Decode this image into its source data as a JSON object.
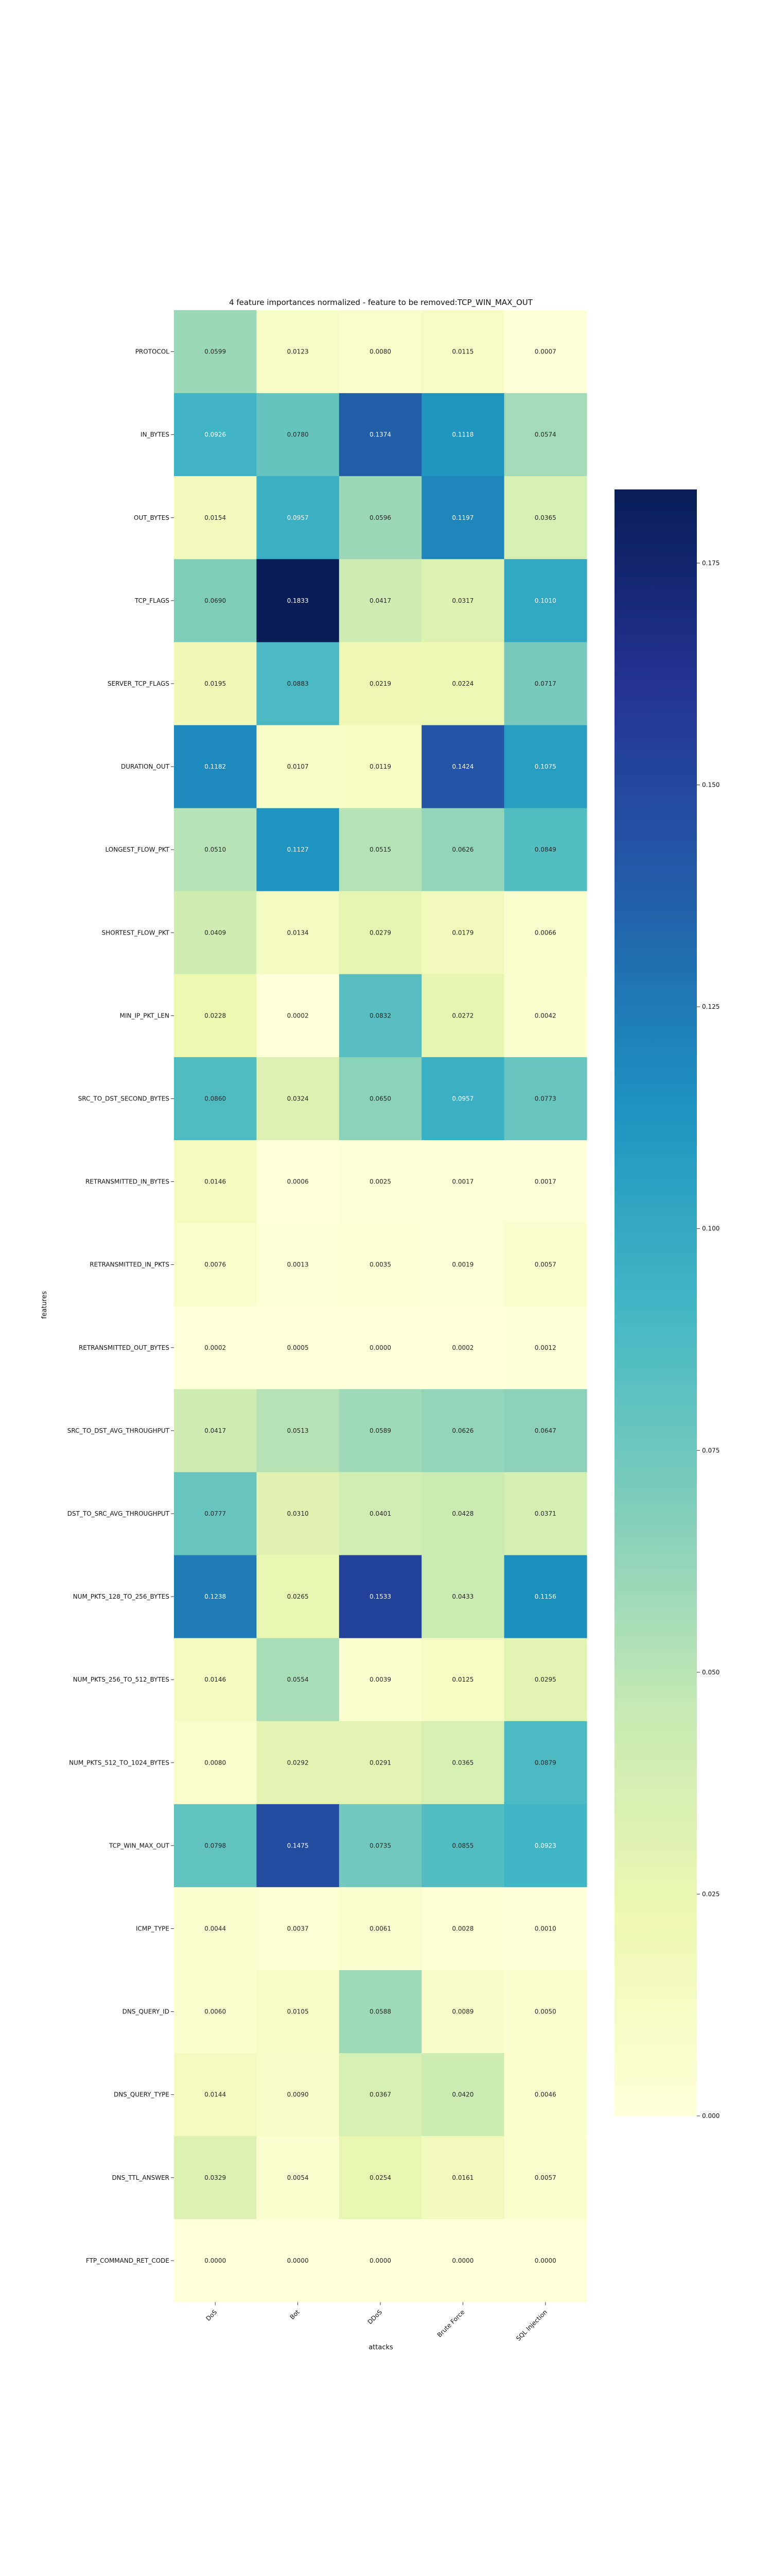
{
  "chart_data": {
    "type": "heatmap",
    "title": "4 feature importances normalized - feature to be removed:TCP_WIN_MAX_OUT",
    "xlabel": "attacks",
    "ylabel": "features",
    "columns": [
      "DoS",
      "Bot",
      "DDoS",
      "Brute Force",
      "SQL Injection"
    ],
    "rows": [
      "PROTOCOL",
      "IN_BYTES",
      "OUT_BYTES",
      "TCP_FLAGS",
      "SERVER_TCP_FLAGS",
      "DURATION_OUT",
      "LONGEST_FLOW_PKT",
      "SHORTEST_FLOW_PKT",
      "MIN_IP_PKT_LEN",
      "SRC_TO_DST_SECOND_BYTES",
      "RETRANSMITTED_IN_BYTES",
      "RETRANSMITTED_IN_PKTS",
      "RETRANSMITTED_OUT_BYTES",
      "SRC_TO_DST_AVG_THROUGHPUT",
      "DST_TO_SRC_AVG_THROUGHPUT",
      "NUM_PKTS_128_TO_256_BYTES",
      "NUM_PKTS_256_TO_512_BYTES",
      "NUM_PKTS_512_TO_1024_BYTES",
      "TCP_WIN_MAX_OUT",
      "ICMP_TYPE",
      "DNS_QUERY_ID",
      "DNS_QUERY_TYPE",
      "DNS_TTL_ANSWER",
      "FTP_COMMAND_RET_CODE"
    ],
    "values": [
      [
        0.0599,
        0.0123,
        0.008,
        0.0115,
        0.0007
      ],
      [
        0.0926,
        0.078,
        0.1374,
        0.1118,
        0.0574
      ],
      [
        0.0154,
        0.0957,
        0.0596,
        0.1197,
        0.0365
      ],
      [
        0.069,
        0.1833,
        0.0417,
        0.0317,
        0.101
      ],
      [
        0.0195,
        0.0883,
        0.0219,
        0.0224,
        0.0717
      ],
      [
        0.1182,
        0.0107,
        0.0119,
        0.1424,
        0.1075
      ],
      [
        0.051,
        0.1127,
        0.0515,
        0.0626,
        0.0849
      ],
      [
        0.0409,
        0.0134,
        0.0279,
        0.0179,
        0.0066
      ],
      [
        0.0228,
        0.0002,
        0.0832,
        0.0272,
        0.0042
      ],
      [
        0.086,
        0.0324,
        0.065,
        0.0957,
        0.0773
      ],
      [
        0.0146,
        0.0006,
        0.0025,
        0.0017,
        0.0017
      ],
      [
        0.0076,
        0.0013,
        0.0035,
        0.0019,
        0.0057
      ],
      [
        0.0002,
        0.0005,
        0.0,
        0.0002,
        0.0012
      ],
      [
        0.0417,
        0.0513,
        0.0589,
        0.0626,
        0.0647
      ],
      [
        0.0777,
        0.031,
        0.0401,
        0.0428,
        0.0371
      ],
      [
        0.1238,
        0.0265,
        0.1533,
        0.0433,
        0.1156
      ],
      [
        0.0146,
        0.0554,
        0.0039,
        0.0125,
        0.0295
      ],
      [
        0.008,
        0.0292,
        0.0291,
        0.0365,
        0.0879
      ],
      [
        0.0798,
        0.1475,
        0.0735,
        0.0855,
        0.0923
      ],
      [
        0.0044,
        0.0037,
        0.0061,
        0.0028,
        0.001
      ],
      [
        0.006,
        0.0105,
        0.0588,
        0.0089,
        0.005
      ],
      [
        0.0144,
        0.009,
        0.0367,
        0.042,
        0.0046
      ],
      [
        0.0329,
        0.0054,
        0.0254,
        0.0161,
        0.0057
      ],
      [
        0.0,
        0.0,
        0.0,
        0.0,
        0.0
      ]
    ],
    "colormap": "YlGnBu",
    "vmin": 0.0,
    "vmax": 0.1833,
    "colorbar_ticks": [
      "0.000",
      "0.025",
      "0.050",
      "0.075",
      "0.100",
      "0.125",
      "0.150",
      "0.175"
    ],
    "grid": false,
    "legend": "colorbar-right"
  }
}
